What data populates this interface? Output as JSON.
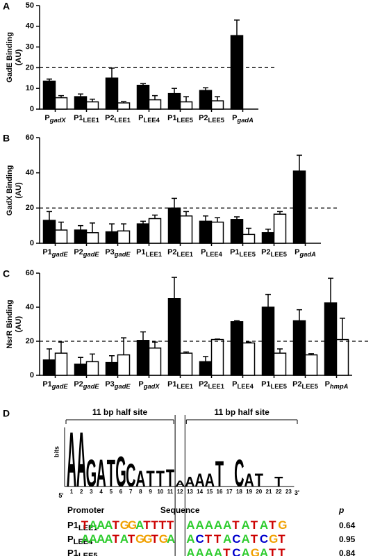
{
  "chart_data": [
    {
      "type": "bar",
      "panel": "A",
      "y_label": [
        "GadE Binding",
        "(AU)"
      ],
      "categories": [
        "PgadX",
        "P1LEE1",
        "P2LEE1",
        "PLEE4",
        "P1LEE5",
        "P2LEE5",
        "PgadA"
      ],
      "series": [
        {
          "color": "#000000",
          "values": [
            13.5,
            6,
            15,
            11.5,
            7.5,
            9,
            35.5
          ],
          "errors": [
            1,
            1.3,
            4.8,
            0.8,
            2.5,
            1.3,
            7.5
          ]
        },
        {
          "color": "#ffffff",
          "values": [
            5.5,
            3.5,
            3,
            4.5,
            3.5,
            4,
            null
          ],
          "errors": [
            1,
            1.3,
            0.6,
            2,
            2.5,
            2,
            null
          ]
        }
      ],
      "ylim": [
        0,
        50
      ],
      "yticks": [
        0,
        10,
        20,
        30,
        40,
        50
      ],
      "hline": 20
    },
    {
      "type": "bar",
      "panel": "B",
      "y_label": [
        "GadX Binding",
        "(AU)"
      ],
      "categories": [
        "P1gadE",
        "P2gadE",
        "P3gadE",
        "P1LEE1",
        "P2LEE1",
        "PLEE4",
        "P1LEE5",
        "P2LEE5",
        "PgadA"
      ],
      "series": [
        {
          "color": "#000000",
          "values": [
            13,
            7.5,
            6.5,
            11,
            20,
            12.5,
            13.5,
            6,
            41
          ],
          "errors": [
            5,
            2.5,
            4.5,
            1.5,
            5.5,
            3,
            1.5,
            2,
            9
          ]
        },
        {
          "color": "#ffffff",
          "values": [
            7.5,
            6,
            7,
            14,
            15.5,
            12,
            5,
            16.5,
            null
          ],
          "errors": [
            4.5,
            5.5,
            4,
            2,
            2.5,
            2.5,
            3.5,
            1.5,
            null
          ]
        }
      ],
      "ylim": [
        0,
        60
      ],
      "yticks": [
        0,
        20,
        40,
        60
      ],
      "hline": 20
    },
    {
      "type": "bar",
      "panel": "C",
      "y_label": [
        "NsrR Binding",
        "(AU)"
      ],
      "categories": [
        "P1gadE",
        "P2gadE",
        "P3gadE",
        "PgadX",
        "P1LEE1",
        "P2LEE1",
        "PLEE4",
        "P1LEE5",
        "P2LEE5",
        "PhmpA"
      ],
      "series": [
        {
          "color": "#000000",
          "values": [
            9,
            6.5,
            7.5,
            20.5,
            45,
            8,
            31.5,
            40,
            32,
            42.5
          ],
          "errors": [
            6.5,
            4,
            4,
            5,
            12.5,
            3,
            0.5,
            7.5,
            6.5,
            14.5
          ]
        },
        {
          "color": "#ffffff",
          "values": [
            13,
            8,
            12,
            16,
            13,
            21,
            19,
            13,
            12,
            21
          ],
          "errors": [
            6.5,
            4.5,
            10,
            3.5,
            0.7,
            0.3,
            0.5,
            2.5,
            0.7,
            12.5
          ]
        }
      ],
      "ylim": [
        0,
        60
      ],
      "yticks": [
        0,
        20,
        40,
        60
      ],
      "hline": 20
    }
  ],
  "panel_d": {
    "panel": "D",
    "half_sites": [
      "11 bp half site",
      "11 bp half site"
    ],
    "logo": {
      "y_label": "bits",
      "ylim": [
        0,
        2
      ],
      "five": "5'",
      "three": "3'",
      "positions": [
        1,
        2,
        3,
        4,
        5,
        6,
        7,
        8,
        9,
        10,
        11,
        12,
        13,
        14,
        15,
        16,
        17,
        18,
        19,
        20,
        21,
        22,
        23
      ],
      "columns": [
        {
          "position": 1,
          "letter": "A",
          "bits": 1.9
        },
        {
          "position": 2,
          "letter": "A",
          "bits": 1.9
        },
        {
          "position": 3,
          "letter": "G",
          "bits": 0.95
        },
        {
          "position": 4,
          "letter": "A",
          "bits": 0.95
        },
        {
          "position": 5,
          "letter": "T",
          "bits": 0.95
        },
        {
          "position": 6,
          "letter": "G",
          "bits": 1.05
        },
        {
          "position": 7,
          "letter": "C",
          "bits": 0.8
        },
        {
          "position": 8,
          "letter": "A",
          "bits": 0.55
        },
        {
          "position": 9,
          "letter": "T",
          "bits": 0.55
        },
        {
          "position": 10,
          "letter": "T",
          "bits": 0.55
        },
        {
          "position": 11,
          "letter": "T",
          "bits": 0.6
        },
        {
          "position": 12,
          "letter": "A",
          "bits": 0.2
        },
        {
          "position": 13,
          "letter": "A",
          "bits": 0.35
        },
        {
          "position": 14,
          "letter": "A",
          "bits": 0.45
        },
        {
          "position": 15,
          "letter": "A",
          "bits": 0.45
        },
        {
          "position": 16,
          "letter": "T",
          "bits": 0.9
        },
        {
          "position": 18,
          "letter": "C",
          "bits": 0.95
        },
        {
          "position": 19,
          "letter": "A",
          "bits": 0.45
        },
        {
          "position": 20,
          "letter": "T",
          "bits": 0.45
        },
        {
          "position": 22,
          "letter": "T",
          "bits": 0.35
        }
      ]
    },
    "table": {
      "headers": [
        "Promoter",
        "Sequence",
        "p"
      ],
      "rows": [
        {
          "promoter": "P1LEE1",
          "left": "TAAATGGATTTT",
          "right": "AAAAATATATG",
          "p": 0.64
        },
        {
          "promoter": "PLEE4",
          "left": "AAAATATGGTGA",
          "right": "ACTTACATCGT",
          "p": 0.95
        },
        {
          "promoter": "P1LEE5",
          "right": "AAAATCAGATT",
          "p": 0.84
        }
      ]
    }
  }
}
